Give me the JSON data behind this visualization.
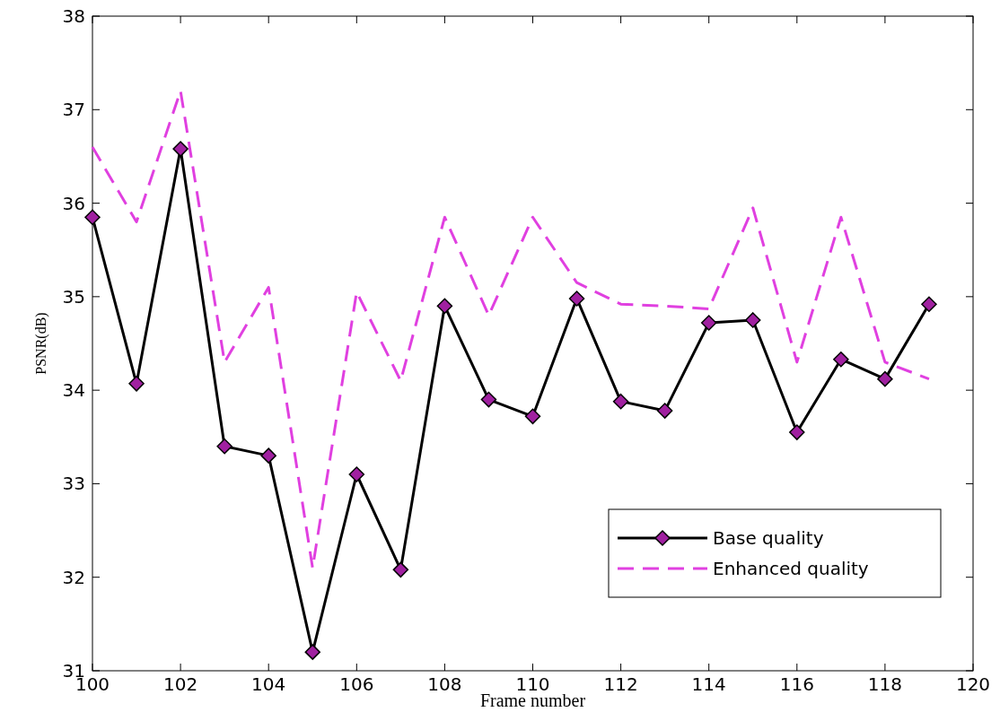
{
  "chart_data": {
    "type": "line",
    "xlabel": "Frame number",
    "ylabel": "PSNR(dB)",
    "x": [
      100,
      101,
      102,
      103,
      104,
      105,
      106,
      107,
      108,
      109,
      110,
      111,
      112,
      113,
      114,
      115,
      116,
      117,
      118,
      119
    ],
    "series": [
      {
        "name": "Base quality",
        "color": "#000000",
        "marker": "diamond",
        "line_style": "solid",
        "values": [
          35.85,
          34.07,
          36.58,
          33.4,
          33.3,
          31.2,
          33.1,
          32.08,
          34.9,
          33.9,
          33.72,
          34.98,
          33.88,
          33.78,
          34.72,
          34.75,
          33.55,
          34.33,
          34.12,
          34.92
        ]
      },
      {
        "name": "Enhanced quality",
        "color": "#e040e0",
        "marker": "none",
        "line_style": "dashed",
        "values": [
          36.6,
          35.8,
          37.2,
          34.3,
          35.1,
          32.1,
          35.05,
          34.1,
          35.85,
          34.8,
          35.85,
          35.15,
          34.92,
          34.9,
          34.87,
          35.95,
          34.3,
          35.85,
          34.3,
          34.12
        ]
      }
    ],
    "xlim": [
      100,
      120
    ],
    "xticks": [
      100,
      102,
      104,
      106,
      108,
      110,
      112,
      114,
      116,
      118,
      120
    ],
    "ylim": [
      31,
      38
    ],
    "yticks": [
      31,
      32,
      33,
      34,
      35,
      36,
      37,
      38
    ],
    "grid": false,
    "legend": "bottom right"
  }
}
